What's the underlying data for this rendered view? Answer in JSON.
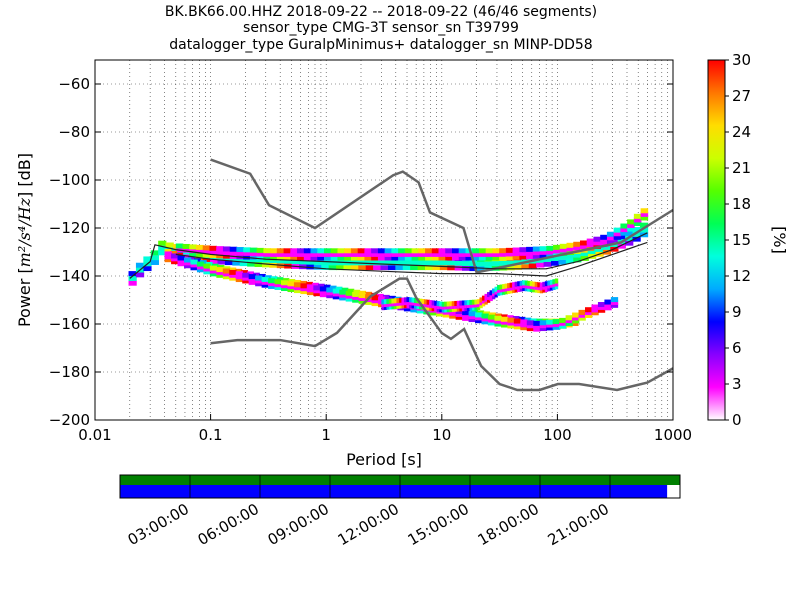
{
  "title": {
    "line1": "BK.BK66.00.HHZ   2018-09-22 -- 2018-09-22  (46/46 segments)",
    "line2": "sensor_type CMG-3T sensor_sn T39799",
    "line3": "datalogger_type GuralpMinimus+ datalogger_sn MINP-DD58"
  },
  "chart_data": [
    {
      "type": "heatmap",
      "xlabel": "Period [s]",
      "ylabel_prefix": "Power [",
      "ylabel_units": "m²/s⁴/Hz",
      "ylabel_suffix": "] [dB]",
      "xscale": "log",
      "xlim": [
        0.01,
        1000
      ],
      "ylim": [
        -200,
        -50
      ],
      "x_ticks": [
        {
          "value": 0.01,
          "label": "0.01"
        },
        {
          "value": 0.1,
          "label": "0.1"
        },
        {
          "value": 1,
          "label": "1"
        },
        {
          "value": 10,
          "label": "10"
        },
        {
          "value": 100,
          "label": "100"
        },
        {
          "value": 1000,
          "label": "1000"
        }
      ],
      "y_ticks": [
        {
          "value": -60,
          "label": "−60"
        },
        {
          "value": -80,
          "label": "−80"
        },
        {
          "value": -100,
          "label": "−100"
        },
        {
          "value": -120,
          "label": "−120"
        },
        {
          "value": -140,
          "label": "−140"
        },
        {
          "value": -160,
          "label": "−160"
        },
        {
          "value": -180,
          "label": "−180"
        },
        {
          "value": -200,
          "label": "−200"
        }
      ],
      "grid": true,
      "colorbar": {
        "label": "[%]",
        "range": [
          0,
          30
        ],
        "ticks": [
          {
            "value": 0,
            "label": "0"
          },
          {
            "value": 3,
            "label": "3"
          },
          {
            "value": 6,
            "label": "6"
          },
          {
            "value": 9,
            "label": "9"
          },
          {
            "value": 12,
            "label": "12"
          },
          {
            "value": 15,
            "label": "15"
          },
          {
            "value": 18,
            "label": "18"
          },
          {
            "value": 21,
            "label": "21"
          },
          {
            "value": 24,
            "label": "24"
          },
          {
            "value": 27,
            "label": "27"
          },
          {
            "value": 30,
            "label": "30"
          }
        ],
        "colors": [
          "#ffffff",
          "#ff00ff",
          "#8800ff",
          "#0000ff",
          "#00aaff",
          "#00ffdd",
          "#00ff55",
          "#55ff00",
          "#ccff00",
          "#ffdd00",
          "#ff7700",
          "#ff0000"
        ]
      },
      "noise_models": {
        "color": "#666666",
        "high": {
          "period": [
            0.1,
            0.22,
            0.32,
            0.8,
            3.8,
            4.6,
            6.3,
            7.9,
            15.4,
            20,
            354.8,
            1000
          ],
          "db": [
            -91.5,
            -97.4,
            -110.5,
            -120,
            -98,
            -96.5,
            -101,
            -113.5,
            -120,
            -138.5,
            -126,
            -112.5
          ]
        },
        "low": {
          "period": [
            0.1,
            0.17,
            0.4,
            0.8,
            1.24,
            2.4,
            4.3,
            5,
            6,
            10,
            12,
            15.6,
            21.9,
            31.6,
            45,
            70,
            101,
            154,
            328,
            600,
            1000
          ],
          "db": [
            -168,
            -166.7,
            -166.7,
            -169.2,
            -163.7,
            -148.6,
            -141.1,
            -141.1,
            -149,
            -163.8,
            -166.2,
            -162.1,
            -177.5,
            -185,
            -187.5,
            -187.5,
            -185,
            -185,
            -187.5,
            -184.4,
            -178.5
          ]
        }
      },
      "series": [
        {
          "name": "main-band",
          "color": "#00ffcc",
          "period": [
            0.0195,
            0.022,
            0.026,
            0.03,
            0.033,
            0.04,
            0.05,
            0.07,
            0.1,
            0.2,
            0.5,
            1,
            2,
            5,
            10,
            20,
            40,
            80,
            150,
            250,
            400,
            600
          ],
          "db": [
            -141,
            -138,
            -135,
            -133,
            -128,
            -129,
            -130,
            -131,
            -132,
            -133,
            -134,
            -134.5,
            -134.5,
            -134.5,
            -134.5,
            -135,
            -134.5,
            -133,
            -131,
            -128,
            -124,
            -119
          ],
          "spread": 2
        },
        {
          "name": "upper-magenta-band",
          "color": "#ff00ff",
          "period": [
            0.05,
            0.1,
            0.3,
            1,
            3,
            10,
            30,
            80,
            150,
            250,
            400,
            600
          ],
          "db": [
            -129,
            -130,
            -131,
            -131,
            -131,
            -131,
            -131,
            -130,
            -128,
            -125,
            -119,
            -112
          ],
          "spread": 1.5
        },
        {
          "name": "lower-quiet-band",
          "color": "#00ffcc",
          "period": [
            0.04,
            0.1,
            0.3,
            1,
            3,
            10,
            30,
            60,
            100,
            150
          ],
          "db": [
            -131,
            -137,
            -142,
            -146,
            -150,
            -154,
            -158,
            -160,
            -160,
            -158
          ],
          "spread": 1.2
        },
        {
          "name": "lower-magenta-band",
          "color": "#ff00ff",
          "period": [
            0.04,
            0.1,
            0.3,
            1,
            3,
            10,
            30,
            60,
            100,
            200,
            330
          ],
          "db": [
            -132,
            -138,
            -143,
            -147,
            -151,
            -155,
            -159,
            -161,
            -160,
            -154,
            -150
          ],
          "spread": 1.2
        },
        {
          "name": "mid-magenta-band",
          "color": "#ff00ff",
          "period": [
            3,
            5,
            10,
            20,
            30,
            50,
            70,
            100
          ],
          "db": [
            -152,
            -151,
            -153,
            -152,
            -146,
            -144,
            -145,
            -143
          ],
          "spread": 1.2
        }
      ],
      "statistic_lines": [
        {
          "name": "mode",
          "color": "#222222",
          "period": [
            0.02,
            0.03,
            0.033,
            0.05,
            0.1,
            0.3,
            1,
            3,
            10,
            30,
            80,
            150,
            300,
            600
          ],
          "db": [
            -141,
            -134,
            -127,
            -129,
            -131,
            -133,
            -134,
            -135,
            -136,
            -137,
            -137,
            -134,
            -129,
            -122
          ]
        },
        {
          "name": "mean",
          "color": "#222222",
          "period": [
            0.05,
            0.1,
            0.3,
            1,
            3,
            10,
            30,
            80,
            150,
            300,
            600
          ],
          "db": [
            -131,
            -133,
            -135,
            -137,
            -138,
            -139,
            -139,
            -140,
            -136,
            -131,
            -126
          ]
        }
      ]
    },
    {
      "type": "table",
      "name": "data-availability",
      "x_ticks": [
        "03:00:00",
        "06:00:00",
        "09:00:00",
        "12:00:00",
        "15:00:00",
        "18:00:00",
        "21:00:00"
      ],
      "coverage_fraction": 0.977,
      "colors": {
        "top": "#008000",
        "bottom": "#0000ff"
      }
    }
  ]
}
